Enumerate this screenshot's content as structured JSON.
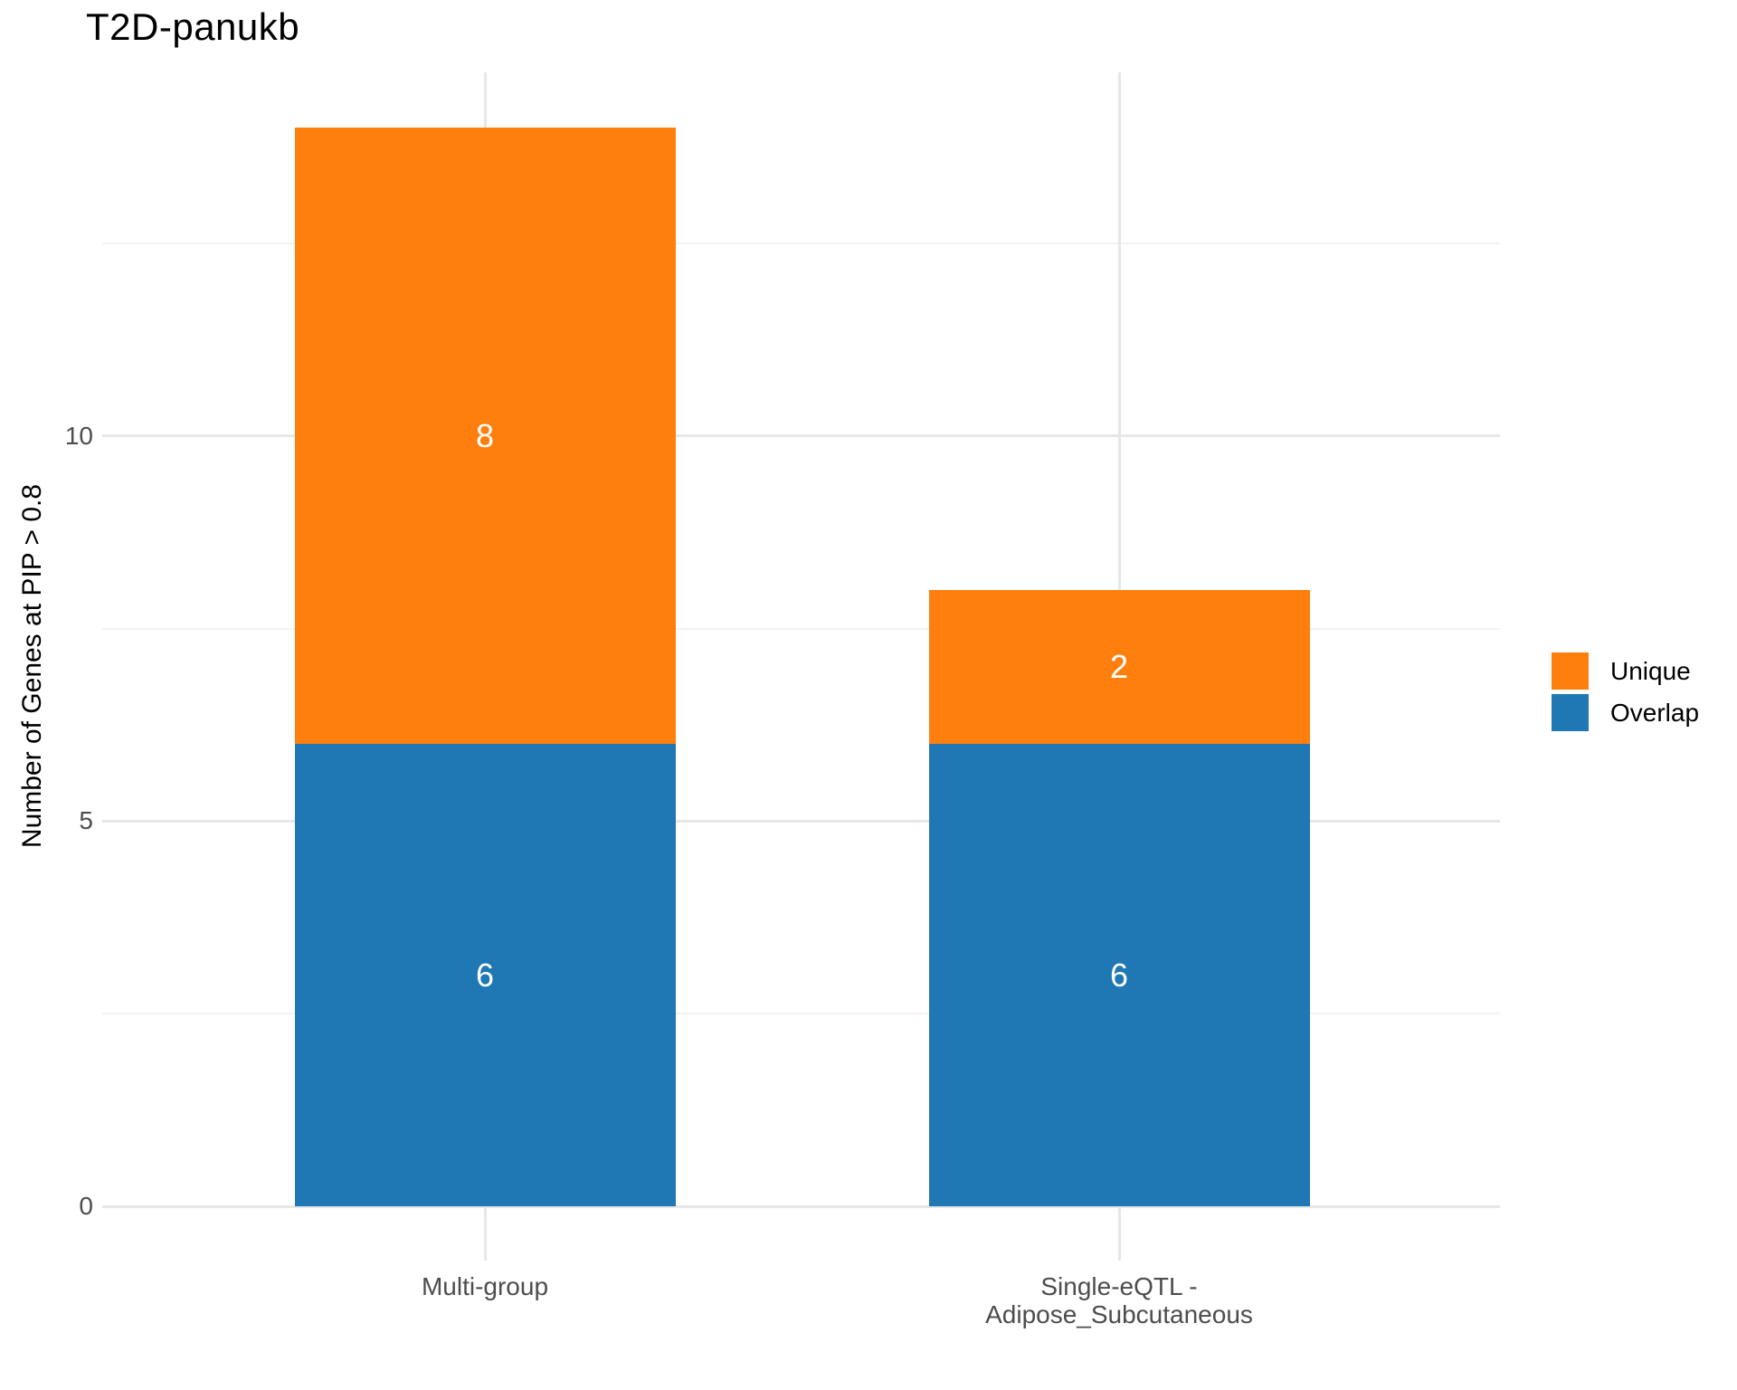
{
  "title": "T2D-panukb",
  "y_axis": {
    "label": "Number of Genes at PIP > 0.8",
    "tick_labels": [
      "0",
      "5",
      "10"
    ]
  },
  "x_axis": {
    "display_labels": [
      "Multi-group",
      "Single-eQTL -\nAdipose_Subcutaneous"
    ]
  },
  "legend": {
    "items": [
      {
        "label": "Unique",
        "color": "#FF7F0E"
      },
      {
        "label": "Overlap",
        "color": "#1F77B4"
      }
    ]
  },
  "chart_data": {
    "type": "bar",
    "stacked": true,
    "title": "T2D-panukb",
    "xlabel": "",
    "ylabel": "Number of Genes at PIP > 0.8",
    "categories": [
      "Multi-group",
      "Single-eQTL - Adipose_Subcutaneous"
    ],
    "series": [
      {
        "name": "Overlap",
        "color": "#1F77B4",
        "values": [
          6,
          6
        ]
      },
      {
        "name": "Unique",
        "color": "#FF7F0E",
        "values": [
          8,
          2
        ]
      }
    ],
    "totals": [
      14,
      8
    ],
    "yticks": [
      0,
      5,
      10
    ],
    "yticks_minor": [
      2.5,
      7.5,
      12.5
    ],
    "ylim": [
      0,
      14.72
    ],
    "grid": true,
    "legend_position": "right",
    "bar_label_color": "#FFFFFF"
  },
  "style": {
    "grid_major_color": "#E7E7E7",
    "grid_minor_color": "#F3F3F3",
    "axis_text_color": "#4D4D4D",
    "title_color": "#000000"
  }
}
